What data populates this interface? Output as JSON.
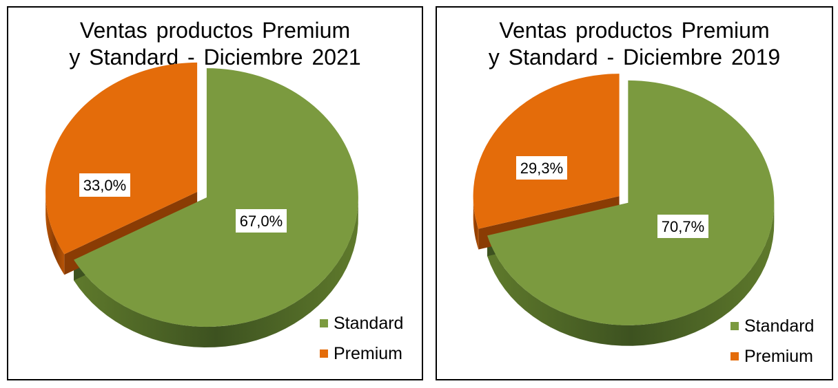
{
  "colors": {
    "standard": "#7b9a3f",
    "premium": "#e46c0a"
  },
  "chart_data": [
    {
      "type": "pie",
      "title": [
        "Ventas productos Premium",
        "y Standard - Diciembre 2021"
      ],
      "categories": [
        "Standard",
        "Premium"
      ],
      "values": [
        67.0,
        33.0
      ],
      "data_labels": [
        "67,0%",
        "33,0%"
      ],
      "legend": {
        "position": "bottom-right",
        "entries": [
          "Standard",
          "Premium"
        ]
      }
    },
    {
      "type": "pie",
      "title": [
        "Ventas productos Premium",
        "y Standard - Diciembre 2019"
      ],
      "categories": [
        "Standard",
        "Premium"
      ],
      "values": [
        70.7,
        29.3
      ],
      "data_labels": [
        "70,7%",
        "29,3%"
      ],
      "legend": {
        "position": "bottom-right",
        "entries": [
          "Standard",
          "Premium"
        ]
      }
    }
  ]
}
